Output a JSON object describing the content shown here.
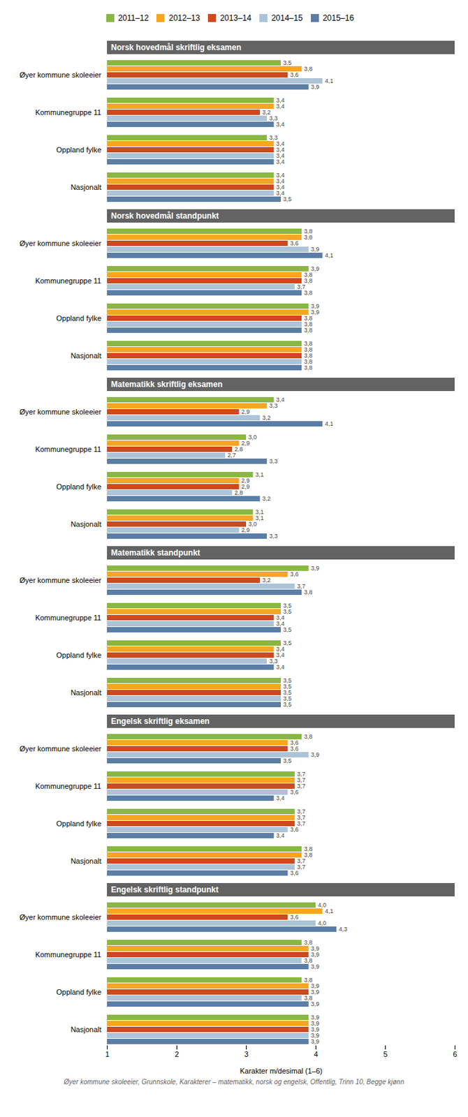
{
  "chart_data": {
    "type": "bar",
    "orientation": "horizontal",
    "xlabel": "Karakter m/desimal (1–6)",
    "caption": "Øyer kommune skoleeier, Grunnskole, Karakterer – matematikk, norsk og engelsk, Offentlig, Trinn 10, Begge kjønn",
    "xlim": [
      1,
      6
    ],
    "xticks": [
      1,
      2,
      3,
      4,
      5,
      6
    ],
    "grid": false,
    "legend": "top",
    "data_labels": true,
    "series": [
      {
        "name": "2011–12",
        "color": "#8ab744"
      },
      {
        "name": "2012–13",
        "color": "#f5a623"
      },
      {
        "name": "2013–14",
        "color": "#cc4a1e"
      },
      {
        "name": "2014–15",
        "color": "#adc4d8"
      },
      {
        "name": "2015–16",
        "color": "#5b7ea6"
      }
    ],
    "sections": [
      {
        "title": "Norsk hovedmål skriftlig eksamen",
        "categories": [
          "Øyer kommune skoleeier",
          "Kommunegruppe 11",
          "Oppland fylke",
          "Nasjonalt"
        ],
        "series": [
          {
            "values": [
              3.5,
              3.4,
              3.3,
              3.4
            ],
            "value_labels": [
              "3,5",
              "3,4",
              "3,3",
              "3,4"
            ]
          },
          {
            "values": [
              3.8,
              3.4,
              3.4,
              3.4
            ],
            "value_labels": [
              "3,8",
              "3,4",
              "3,4",
              "3,4"
            ]
          },
          {
            "values": [
              3.6,
              3.2,
              3.4,
              3.4
            ],
            "value_labels": [
              "3,6",
              "3,2",
              "3,4",
              "3,4"
            ]
          },
          {
            "values": [
              4.1,
              3.3,
              3.4,
              3.4
            ],
            "value_labels": [
              "4,1",
              "3,3",
              "3,4",
              "3,4"
            ]
          },
          {
            "values": [
              3.9,
              3.4,
              3.4,
              3.5
            ],
            "value_labels": [
              "3,9",
              "3,4",
              "3,4",
              "3,5"
            ]
          }
        ]
      },
      {
        "title": "Norsk hovedmål standpunkt",
        "categories": [
          "Øyer kommune skoleeier",
          "Kommunegruppe 11",
          "Oppland fylke",
          "Nasjonalt"
        ],
        "series": [
          {
            "values": [
              3.8,
              3.9,
              3.9,
              3.8
            ],
            "value_labels": [
              "3,8",
              "3,9",
              "3,9",
              "3,8"
            ]
          },
          {
            "values": [
              3.8,
              3.8,
              3.9,
              3.8
            ],
            "value_labels": [
              "3,8",
              "3,8",
              "3,9",
              "3,8"
            ]
          },
          {
            "values": [
              3.6,
              3.8,
              3.8,
              3.8
            ],
            "value_labels": [
              "3,6",
              "3,8",
              "3,8",
              "3,8"
            ]
          },
          {
            "values": [
              3.9,
              3.7,
              3.8,
              3.8
            ],
            "value_labels": [
              "3,9",
              "3,7",
              "3,8",
              "3,8"
            ]
          },
          {
            "values": [
              4.1,
              3.8,
              3.8,
              3.8
            ],
            "value_labels": [
              "4,1",
              "3,8",
              "3,8",
              "3,8"
            ]
          }
        ]
      },
      {
        "title": "Matematikk skriftlig eksamen",
        "categories": [
          "Øyer kommune skoleeier",
          "Kommunegruppe 11",
          "Oppland fylke",
          "Nasjonalt"
        ],
        "series": [
          {
            "values": [
              3.4,
              3.0,
              3.1,
              3.1
            ],
            "value_labels": [
              "3,4",
              "3,0",
              "3,1",
              "3,1"
            ]
          },
          {
            "values": [
              3.3,
              2.9,
              2.9,
              3.1
            ],
            "value_labels": [
              "3,3",
              "2,9",
              "2,9",
              "3,1"
            ]
          },
          {
            "values": [
              2.9,
              2.8,
              2.9,
              3.0
            ],
            "value_labels": [
              "2,9",
              "2,8",
              "2,9",
              "3,0"
            ]
          },
          {
            "values": [
              3.2,
              2.7,
              2.8,
              2.9
            ],
            "value_labels": [
              "3,2",
              "2,7",
              "2,8",
              "2,9"
            ]
          },
          {
            "values": [
              4.1,
              3.3,
              3.2,
              3.3
            ],
            "value_labels": [
              "4,1",
              "3,3",
              "3,2",
              "3,3"
            ]
          }
        ]
      },
      {
        "title": "Matematikk standpunkt",
        "categories": [
          "Øyer kommune skoleeier",
          "Kommunegruppe 11",
          "Oppland fylke",
          "Nasjonalt"
        ],
        "series": [
          {
            "values": [
              3.9,
              3.5,
              3.5,
              3.5
            ],
            "value_labels": [
              "3,9",
              "3,5",
              "3,5",
              "3,5"
            ]
          },
          {
            "values": [
              3.6,
              3.5,
              3.4,
              3.5
            ],
            "value_labels": [
              "3,6",
              "3,5",
              "3,4",
              "3,5"
            ]
          },
          {
            "values": [
              3.2,
              3.4,
              3.4,
              3.5
            ],
            "value_labels": [
              "3,2",
              "3,4",
              "3,4",
              "3,5"
            ]
          },
          {
            "values": [
              3.7,
              3.4,
              3.3,
              3.5
            ],
            "value_labels": [
              "3,7",
              "3,4",
              "3,3",
              "3,5"
            ]
          },
          {
            "values": [
              3.8,
              3.5,
              3.4,
              3.5
            ],
            "value_labels": [
              "3,8",
              "3,5",
              "3,4",
              "3,5"
            ]
          }
        ]
      },
      {
        "title": "Engelsk skriftlig eksamen",
        "categories": [
          "Øyer kommune skoleeier",
          "Kommunegruppe 11",
          "Oppland fylke",
          "Nasjonalt"
        ],
        "series": [
          {
            "values": [
              3.8,
              3.7,
              3.7,
              3.8
            ],
            "value_labels": [
              "3,8",
              "3,7",
              "3,7",
              "3,8"
            ]
          },
          {
            "values": [
              3.6,
              3.7,
              3.7,
              3.8
            ],
            "value_labels": [
              "3,6",
              "3,7",
              "3,7",
              "3,8"
            ]
          },
          {
            "values": [
              3.6,
              3.7,
              3.7,
              3.7
            ],
            "value_labels": [
              "3,6",
              "3,7",
              "3,7",
              "3,7"
            ]
          },
          {
            "values": [
              3.9,
              3.6,
              3.6,
              3.7
            ],
            "value_labels": [
              "3,9",
              "3,6",
              "3,6",
              "3,7"
            ]
          },
          {
            "values": [
              3.5,
              3.4,
              3.4,
              3.6
            ],
            "value_labels": [
              "3,5",
              "3,4",
              "3,4",
              "3,6"
            ]
          }
        ]
      },
      {
        "title": "Engelsk skriftlig standpunkt",
        "categories": [
          "Øyer kommune skoleeier",
          "Kommunegruppe 11",
          "Oppland fylke",
          "Nasjonalt"
        ],
        "series": [
          {
            "values": [
              4.0,
              3.8,
              3.8,
              3.9
            ],
            "value_labels": [
              "4,0",
              "3,8",
              "3,8",
              "3,9"
            ]
          },
          {
            "values": [
              4.1,
              3.9,
              3.9,
              3.9
            ],
            "value_labels": [
              "4,1",
              "3,9",
              "3,9",
              "3,9"
            ]
          },
          {
            "values": [
              3.6,
              3.9,
              3.9,
              3.9
            ],
            "value_labels": [
              "3,6",
              "3,9",
              "3,9",
              "3,9"
            ]
          },
          {
            "values": [
              4.0,
              3.8,
              3.8,
              3.9
            ],
            "value_labels": [
              "4,0",
              "3,8",
              "3,8",
              "3,9"
            ]
          },
          {
            "values": [
              4.3,
              3.9,
              3.9,
              3.9
            ],
            "value_labels": [
              "4,3",
              "3,9",
              "3,9",
              "3,9"
            ]
          }
        ]
      }
    ]
  }
}
